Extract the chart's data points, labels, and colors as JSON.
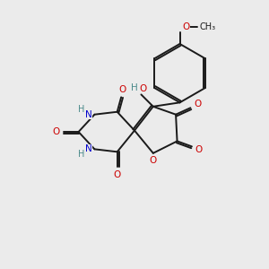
{
  "background_color": "#ebebeb",
  "bond_color": "#1a1a1a",
  "bond_width": 1.4,
  "atom_colors": {
    "O": "#cc0000",
    "N": "#0000cc",
    "H": "#4a8a8a",
    "C": "#1a1a1a"
  },
  "figsize": [
    3.0,
    3.0
  ],
  "dpi": 100
}
